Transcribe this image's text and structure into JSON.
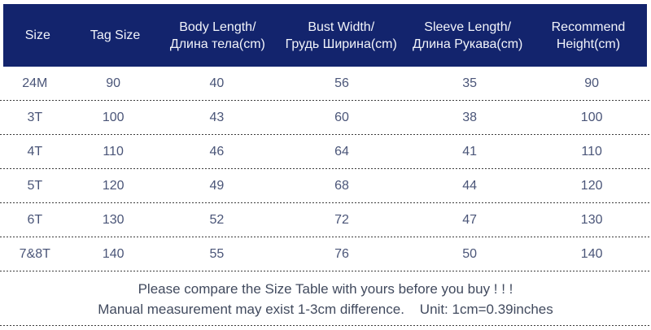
{
  "chart_data": {
    "type": "table",
    "title": "Size Table",
    "columns": [
      {
        "en": "Size",
        "ru": ""
      },
      {
        "en": "Tag Size",
        "ru": ""
      },
      {
        "en": "Body Length/",
        "ru": "Длина тела(cm)"
      },
      {
        "en": "Bust Width/",
        "ru": "Грудь Ширина(cm)"
      },
      {
        "en": "Sleeve Length/",
        "ru": "Длина Рукава(cm)"
      },
      {
        "en": "Recommend",
        "ru": "Height(cm)"
      }
    ],
    "rows": [
      [
        "24M",
        "90",
        "40",
        "56",
        "35",
        "90"
      ],
      [
        "3T",
        "100",
        "43",
        "60",
        "38",
        "100"
      ],
      [
        "4T",
        "110",
        "46",
        "64",
        "41",
        "110"
      ],
      [
        "5T",
        "120",
        "49",
        "68",
        "44",
        "120"
      ],
      [
        "6T",
        "130",
        "52",
        "72",
        "47",
        "130"
      ],
      [
        "7&8T",
        "140",
        "55",
        "76",
        "50",
        "140"
      ]
    ]
  },
  "notes": {
    "line1": "Please compare the Size Table with yours before you buy ! ! !",
    "line2": "Manual measurement may exist 1-3cm difference.    Unit: 1cm=0.39inches"
  },
  "colors": {
    "header_bg": "#13246d",
    "header_text": "#f2f4fa",
    "body_text": "#4a5578",
    "note_text": "#414a5e",
    "divider": "#3c3c3c"
  }
}
